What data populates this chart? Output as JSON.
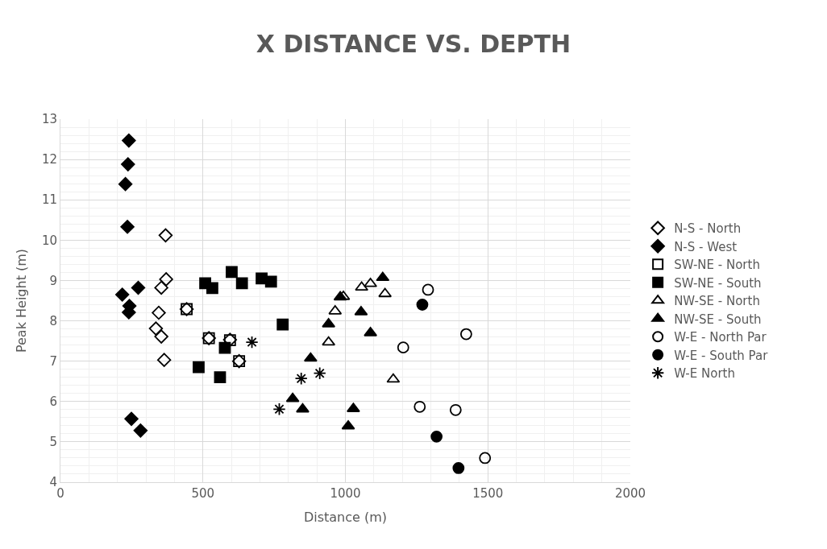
{
  "chart_data": {
    "type": "scatter",
    "title": "X DISTANCE VS. DEPTH",
    "xlabel": "Distance (m)",
    "ylabel": "Peak Height (m)",
    "xlim": [
      0,
      2000
    ],
    "xticks": [
      0,
      500,
      1000,
      1500,
      2000
    ],
    "ylim": [
      4,
      13
    ],
    "yticks": [
      4,
      5,
      6,
      7,
      8,
      9,
      10,
      11,
      12,
      13
    ],
    "grid": true,
    "legend": "right",
    "series": [
      {
        "name": "N-S - North",
        "color": "#000000",
        "marker": "diamond-open",
        "x": [
          369,
          371,
          354,
          345,
          335,
          354,
          364,
          443,
          521,
          595,
          627
        ],
        "values": [
          10.12,
          9.03,
          8.82,
          8.2,
          7.81,
          7.61,
          7.03,
          8.29,
          7.57,
          7.53,
          7.0
        ]
      },
      {
        "name": "N-S - West",
        "color": "#000000",
        "marker": "diamond",
        "x": [
          240,
          237,
          228,
          235,
          273,
          217,
          242,
          240,
          249,
          281
        ],
        "values": [
          12.47,
          11.88,
          11.39,
          10.33,
          8.82,
          8.65,
          8.37,
          8.21,
          5.57,
          5.28
        ]
      },
      {
        "name": "SW-NE - North",
        "color": "#000000",
        "marker": "square-open",
        "x": [
          443,
          521,
          595,
          627
        ],
        "values": [
          8.29,
          7.57,
          7.52,
          7.0
        ]
      },
      {
        "name": "SW-NE - South",
        "color": "#000000",
        "marker": "square",
        "x": [
          508,
          533,
          601,
          637,
          706,
          739,
          780,
          577,
          485,
          560
        ],
        "values": [
          8.93,
          8.81,
          9.21,
          8.93,
          9.05,
          8.97,
          7.91,
          7.33,
          6.85,
          6.6
        ]
      },
      {
        "name": "NW-SE - North",
        "color": "#000000",
        "marker": "triangle-open",
        "x": [
          993,
          1057,
          1088,
          1139,
          964,
          941,
          1168
        ],
        "values": [
          8.6,
          8.83,
          8.92,
          8.67,
          8.24,
          7.47,
          6.55
        ]
      },
      {
        "name": "NW-SE - South",
        "color": "#000000",
        "marker": "triangle",
        "x": [
          1131,
          982,
          1055,
          941,
          1088,
          1028,
          1010,
          878,
          815,
          850
        ],
        "values": [
          9.07,
          8.59,
          8.22,
          7.92,
          7.7,
          5.82,
          5.39,
          7.07,
          6.07,
          5.81
        ]
      },
      {
        "name": "W-E - North Par",
        "color": "#000000",
        "marker": "circle-open",
        "x": [
          1290,
          1424,
          1203,
          1261,
          1387,
          1490
        ],
        "values": [
          8.77,
          7.67,
          7.34,
          5.87,
          5.79,
          4.6
        ]
      },
      {
        "name": "W-E - South Par",
        "color": "#000000",
        "marker": "circle",
        "x": [
          1270,
          1320,
          1397
        ],
        "values": [
          8.4,
          5.13,
          4.35
        ]
      },
      {
        "name": "W-E North",
        "color": "#000000",
        "marker": "cross",
        "x": [
          672,
          768,
          845,
          910
        ],
        "values": [
          7.47,
          5.81,
          6.57,
          6.7
        ]
      }
    ]
  }
}
